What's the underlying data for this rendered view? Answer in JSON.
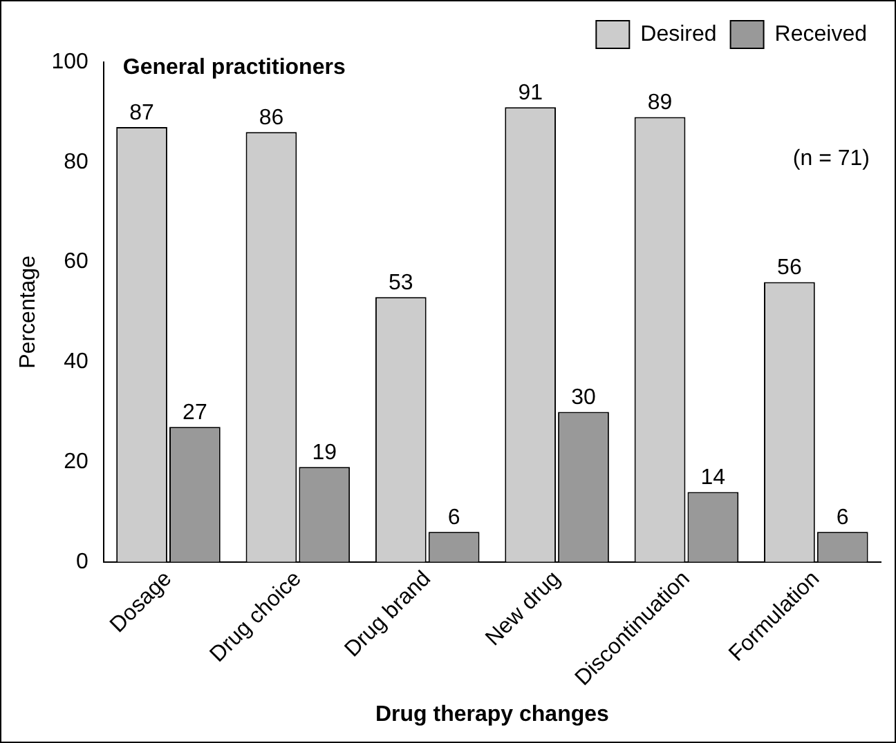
{
  "chart_data": {
    "type": "bar",
    "xlabel": "Drug therapy changes",
    "ylabel": "Percentage",
    "categories": [
      "Dosage",
      "Drug choice",
      "Drug brand",
      "New drug",
      "Discontinuation",
      "Formulation"
    ],
    "series": [
      {
        "name": "Desired",
        "color": "#cccccc",
        "values": [
          87,
          86,
          53,
          91,
          89,
          56
        ]
      },
      {
        "name": "Received",
        "color": "#999999",
        "values": [
          27,
          19,
          6,
          30,
          14,
          6
        ]
      }
    ],
    "ylim": [
      0,
      100
    ],
    "yticks": [
      0,
      20,
      40,
      60,
      80,
      100
    ],
    "grid": false,
    "legend": "top right",
    "data_labels": true,
    "annotations": [
      "General practitioners",
      "(n = 71)"
    ]
  }
}
